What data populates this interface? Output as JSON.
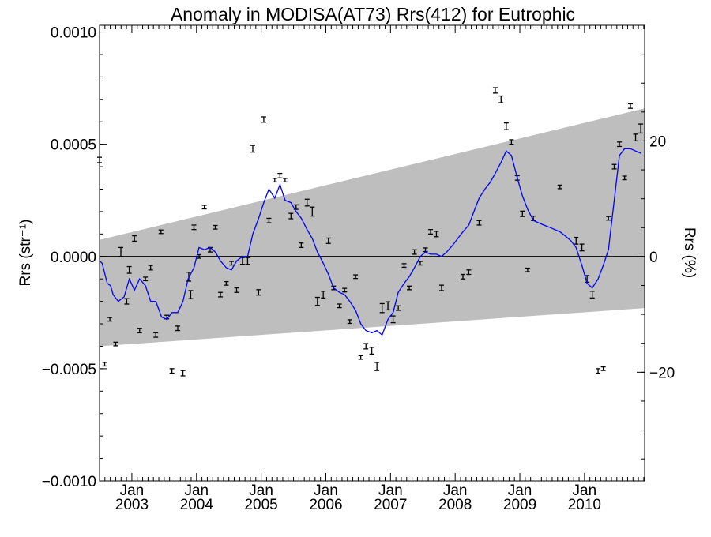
{
  "chart_data": {
    "type": "line",
    "title": "Anomaly in MODISA(AT73) Rrs(412) for Eutrophic",
    "ylabel_left": "Rrs (str⁻¹)",
    "ylabel_right": "Rrs (%)",
    "x_unit": "decimal year",
    "xlim": [
      2002.5,
      2010.93
    ],
    "ylim_left": [
      -0.001,
      0.00103
    ],
    "ylim_right": [
      -38.8,
      40.0
    ],
    "grid": false,
    "left_ticks": [
      {
        "value": 0.001,
        "label": "0.0010"
      },
      {
        "value": 0.0005,
        "label": "0.0005"
      },
      {
        "value": 0.0,
        "label": "0.0000"
      },
      {
        "value": -0.0005,
        "label": "−0.0005"
      },
      {
        "value": -0.001,
        "label": "−0.0010"
      }
    ],
    "right_ticks": [
      {
        "value": 20,
        "label": "20"
      },
      {
        "value": 0,
        "label": "0"
      },
      {
        "value": -20,
        "label": "−20"
      }
    ],
    "x_ticks": [
      {
        "value": 2003.0,
        "month": "Jan",
        "year": "2003"
      },
      {
        "value": 2004.0,
        "month": "Jan",
        "year": "2004"
      },
      {
        "value": 2005.0,
        "month": "Jan",
        "year": "2005"
      },
      {
        "value": 2006.0,
        "month": "Jan",
        "year": "2006"
      },
      {
        "value": 2007.0,
        "month": "Jan",
        "year": "2007"
      },
      {
        "value": 2008.0,
        "month": "Jan",
        "year": "2008"
      },
      {
        "value": 2009.0,
        "month": "Jan",
        "year": "2009"
      },
      {
        "value": 2010.0,
        "month": "Jan",
        "year": "2010"
      }
    ],
    "colors": {
      "band": "#bebebe",
      "smooth_line": "#0000ff",
      "points": "#000000",
      "zero_line": "#000000"
    },
    "band": {
      "upper_start": [
        2002.5,
        7.4e-05
      ],
      "upper_end": [
        2010.93,
        0.00066
      ],
      "lower_start": [
        2002.5,
        -0.0004
      ],
      "lower_end": [
        2010.93,
        -0.00023
      ]
    },
    "points": [
      {
        "x": 2002.5,
        "y": 0.00043,
        "e": 1.2e-05
      },
      {
        "x": 2002.58,
        "y": -0.00048,
        "e": 8e-06
      },
      {
        "x": 2002.66,
        "y": -0.00028,
        "e": 8e-06
      },
      {
        "x": 2002.75,
        "y": -0.00039,
        "e": 8e-06
      },
      {
        "x": 2002.83,
        "y": 2e-05,
        "e": 2e-05
      },
      {
        "x": 2002.92,
        "y": -0.0002,
        "e": 1.2e-05
      },
      {
        "x": 2002.96,
        "y": -6e-05,
        "e": 1.5e-05
      },
      {
        "x": 2003.04,
        "y": 8e-05,
        "e": 1.2e-05
      },
      {
        "x": 2003.12,
        "y": -0.00033,
        "e": 1e-05
      },
      {
        "x": 2003.21,
        "y": -0.0001,
        "e": 8e-06
      },
      {
        "x": 2003.29,
        "y": -5e-05,
        "e": 1e-05
      },
      {
        "x": 2003.37,
        "y": -0.00035,
        "e": 1e-05
      },
      {
        "x": 2003.45,
        "y": 0.00011,
        "e": 8e-06
      },
      {
        "x": 2003.54,
        "y": -0.00027,
        "e": 8e-06
      },
      {
        "x": 2003.62,
        "y": -0.00051,
        "e": 1e-05
      },
      {
        "x": 2003.71,
        "y": -0.00032,
        "e": 1e-05
      },
      {
        "x": 2003.79,
        "y": -0.00052,
        "e": 1.2e-05
      },
      {
        "x": 2003.88,
        "y": -9e-05,
        "e": 2e-05
      },
      {
        "x": 2003.91,
        "y": -0.00017,
        "e": 1.8e-05
      },
      {
        "x": 2003.96,
        "y": 0.00013,
        "e": 1e-05
      },
      {
        "x": 2004.04,
        "y": 0.0,
        "e": 8e-06
      },
      {
        "x": 2004.12,
        "y": 0.00022,
        "e": 8e-06
      },
      {
        "x": 2004.21,
        "y": 3e-05,
        "e": 1e-05
      },
      {
        "x": 2004.29,
        "y": 0.00013,
        "e": 8e-06
      },
      {
        "x": 2004.37,
        "y": -0.00017,
        "e": 1e-05
      },
      {
        "x": 2004.46,
        "y": -0.00012,
        "e": 8e-06
      },
      {
        "x": 2004.54,
        "y": -3e-05,
        "e": 8e-06
      },
      {
        "x": 2004.62,
        "y": -0.00015,
        "e": 1e-05
      },
      {
        "x": 2004.71,
        "y": -2e-05,
        "e": 1.5e-05
      },
      {
        "x": 2004.79,
        "y": -2e-05,
        "e": 1.5e-05
      },
      {
        "x": 2004.87,
        "y": 0.00048,
        "e": 1.5e-05
      },
      {
        "x": 2004.96,
        "y": -0.00016,
        "e": 1.2e-05
      },
      {
        "x": 2005.04,
        "y": 0.00061,
        "e": 1.2e-05
      },
      {
        "x": 2005.12,
        "y": 0.00016,
        "e": 1e-05
      },
      {
        "x": 2005.21,
        "y": 0.00034,
        "e": 8e-06
      },
      {
        "x": 2005.29,
        "y": 0.00036,
        "e": 1e-05
      },
      {
        "x": 2005.37,
        "y": 0.00034,
        "e": 8e-06
      },
      {
        "x": 2005.46,
        "y": 0.00018,
        "e": 1.2e-05
      },
      {
        "x": 2005.54,
        "y": 0.00022,
        "e": 1e-05
      },
      {
        "x": 2005.62,
        "y": 5e-05,
        "e": 1e-05
      },
      {
        "x": 2005.71,
        "y": 0.00024,
        "e": 1.5e-05
      },
      {
        "x": 2005.79,
        "y": 0.0002,
        "e": 2e-05
      },
      {
        "x": 2005.87,
        "y": -0.0002,
        "e": 1.8e-05
      },
      {
        "x": 2005.96,
        "y": -0.00017,
        "e": 1.5e-05
      },
      {
        "x": 2006.04,
        "y": 7e-05,
        "e": 1.2e-05
      },
      {
        "x": 2006.12,
        "y": -0.00014,
        "e": 8e-06
      },
      {
        "x": 2006.21,
        "y": -0.00022,
        "e": 8e-06
      },
      {
        "x": 2006.29,
        "y": -0.00015,
        "e": 8e-06
      },
      {
        "x": 2006.37,
        "y": -0.00029,
        "e": 8e-06
      },
      {
        "x": 2006.46,
        "y": -9e-05,
        "e": 8e-06
      },
      {
        "x": 2006.54,
        "y": -0.00045,
        "e": 8e-06
      },
      {
        "x": 2006.62,
        "y": -0.0004,
        "e": 1.2e-05
      },
      {
        "x": 2006.71,
        "y": -0.00042,
        "e": 1.5e-05
      },
      {
        "x": 2006.79,
        "y": -0.00049,
        "e": 1.8e-05
      },
      {
        "x": 2006.87,
        "y": -0.00023,
        "e": 2e-05
      },
      {
        "x": 2006.96,
        "y": -0.00022,
        "e": 1.8e-05
      },
      {
        "x": 2007.04,
        "y": -0.00028,
        "e": 1.5e-05
      },
      {
        "x": 2007.12,
        "y": -0.00023,
        "e": 1e-05
      },
      {
        "x": 2007.21,
        "y": -4e-05,
        "e": 8e-06
      },
      {
        "x": 2007.29,
        "y": -0.00014,
        "e": 8e-06
      },
      {
        "x": 2007.37,
        "y": 2e-05,
        "e": 1e-05
      },
      {
        "x": 2007.46,
        "y": -3e-05,
        "e": 8e-06
      },
      {
        "x": 2007.54,
        "y": 3e-05,
        "e": 8e-06
      },
      {
        "x": 2007.62,
        "y": 0.00011,
        "e": 1e-05
      },
      {
        "x": 2007.71,
        "y": 0.0001,
        "e": 1.2e-05
      },
      {
        "x": 2007.79,
        "y": -0.00014,
        "e": 1.2e-05
      },
      {
        "x": 2008.12,
        "y": -9e-05,
        "e": 1e-05
      },
      {
        "x": 2008.21,
        "y": -7e-05,
        "e": 1e-05
      },
      {
        "x": 2008.37,
        "y": 0.00015,
        "e": 1e-05
      },
      {
        "x": 2008.62,
        "y": 0.00074,
        "e": 1.2e-05
      },
      {
        "x": 2008.71,
        "y": 0.0007,
        "e": 1.5e-05
      },
      {
        "x": 2008.79,
        "y": 0.00058,
        "e": 1.5e-05
      },
      {
        "x": 2008.87,
        "y": 0.00051,
        "e": 1e-05
      },
      {
        "x": 2008.96,
        "y": 0.00035,
        "e": 1e-05
      },
      {
        "x": 2009.04,
        "y": 0.00019,
        "e": 1.2e-05
      },
      {
        "x": 2009.12,
        "y": -6e-05,
        "e": 8e-06
      },
      {
        "x": 2009.21,
        "y": 0.00017,
        "e": 1e-05
      },
      {
        "x": 2009.62,
        "y": 0.00031,
        "e": 8e-06
      },
      {
        "x": 2009.87,
        "y": 7e-05,
        "e": 1.5e-05
      },
      {
        "x": 2009.96,
        "y": 4e-05,
        "e": 1.5e-05
      },
      {
        "x": 2010.04,
        "y": -0.0001,
        "e": 1.5e-05
      },
      {
        "x": 2010.12,
        "y": -0.00017,
        "e": 1.5e-05
      },
      {
        "x": 2010.21,
        "y": -0.00051,
        "e": 1e-05
      },
      {
        "x": 2010.29,
        "y": -0.0005,
        "e": 8e-06
      },
      {
        "x": 2010.37,
        "y": 0.00017,
        "e": 8e-06
      },
      {
        "x": 2010.46,
        "y": 0.0004,
        "e": 1e-05
      },
      {
        "x": 2010.54,
        "y": 0.0005,
        "e": 1e-05
      },
      {
        "x": 2010.62,
        "y": 0.00035,
        "e": 8e-06
      },
      {
        "x": 2010.71,
        "y": 0.00067,
        "e": 1e-05
      },
      {
        "x": 2010.79,
        "y": 0.00053,
        "e": 1.5e-05
      },
      {
        "x": 2010.87,
        "y": 0.00057,
        "e": 2e-05
      }
    ],
    "smooth_line": [
      [
        2002.5,
        -2e-05
      ],
      [
        2002.54,
        -3e-05
      ],
      [
        2002.62,
        -0.00012
      ],
      [
        2002.67,
        -0.00013
      ],
      [
        2002.71,
        -0.00017
      ],
      [
        2002.79,
        -0.0002
      ],
      [
        2002.88,
        -0.00018
      ],
      [
        2002.96,
        -0.0001
      ],
      [
        2003.04,
        -0.00015
      ],
      [
        2003.12,
        -0.0001
      ],
      [
        2003.21,
        -0.00013
      ],
      [
        2003.29,
        -0.0002
      ],
      [
        2003.37,
        -0.0002
      ],
      [
        2003.46,
        -0.00027
      ],
      [
        2003.54,
        -0.00028
      ],
      [
        2003.62,
        -0.00025
      ],
      [
        2003.71,
        -0.00025
      ],
      [
        2003.79,
        -0.0002
      ],
      [
        2003.87,
        -0.0001
      ],
      [
        2003.96,
        -5e-05
      ],
      [
        2004.04,
        4e-05
      ],
      [
        2004.12,
        3e-05
      ],
      [
        2004.21,
        4e-05
      ],
      [
        2004.29,
        2e-05
      ],
      [
        2004.37,
        -2e-05
      ],
      [
        2004.46,
        -5e-05
      ],
      [
        2004.54,
        -6e-05
      ],
      [
        2004.62,
        -2e-05
      ],
      [
        2004.71,
        0.0
      ],
      [
        2004.79,
        0.0
      ],
      [
        2004.87,
        0.0001
      ],
      [
        2004.96,
        0.00017
      ],
      [
        2005.04,
        0.00024
      ],
      [
        2005.12,
        0.0003
      ],
      [
        2005.21,
        0.00026
      ],
      [
        2005.29,
        0.00032
      ],
      [
        2005.37,
        0.00025
      ],
      [
        2005.46,
        0.00024
      ],
      [
        2005.54,
        0.0002
      ],
      [
        2005.62,
        0.00017
      ],
      [
        2005.71,
        0.00012
      ],
      [
        2005.79,
        8e-05
      ],
      [
        2005.87,
        2e-05
      ],
      [
        2005.96,
        -3e-05
      ],
      [
        2006.04,
        -8e-05
      ],
      [
        2006.12,
        -0.00014
      ],
      [
        2006.21,
        -0.00016
      ],
      [
        2006.29,
        -0.00017
      ],
      [
        2006.37,
        -0.0002
      ],
      [
        2006.46,
        -0.00024
      ],
      [
        2006.54,
        -0.0003
      ],
      [
        2006.62,
        -0.00033
      ],
      [
        2006.71,
        -0.00034
      ],
      [
        2006.79,
        -0.00033
      ],
      [
        2006.87,
        -0.00035
      ],
      [
        2006.96,
        -0.00028
      ],
      [
        2007.04,
        -0.00025
      ],
      [
        2007.12,
        -0.00016
      ],
      [
        2007.21,
        -0.00012
      ],
      [
        2007.29,
        -9e-05
      ],
      [
        2007.37,
        -5e-05
      ],
      [
        2007.46,
        0.0
      ],
      [
        2007.54,
        2e-05
      ],
      [
        2007.62,
        1e-05
      ],
      [
        2007.71,
        1e-05
      ],
      [
        2007.79,
        0.0
      ],
      [
        2007.87,
        2e-05
      ],
      [
        2007.96,
        5e-05
      ],
      [
        2008.04,
        8e-05
      ],
      [
        2008.12,
        0.00011
      ],
      [
        2008.21,
        0.00014
      ],
      [
        2008.29,
        0.0002
      ],
      [
        2008.37,
        0.00026
      ],
      [
        2008.46,
        0.0003
      ],
      [
        2008.54,
        0.00033
      ],
      [
        2008.62,
        0.00037
      ],
      [
        2008.71,
        0.00042
      ],
      [
        2008.79,
        0.00047
      ],
      [
        2008.87,
        0.00045
      ],
      [
        2008.96,
        0.00035
      ],
      [
        2009.04,
        0.00027
      ],
      [
        2009.12,
        0.00021
      ],
      [
        2009.21,
        0.00016
      ],
      [
        2009.29,
        0.00015
      ],
      [
        2009.37,
        0.00014
      ],
      [
        2009.46,
        0.00013
      ],
      [
        2009.54,
        0.00012
      ],
      [
        2009.62,
        0.00011
      ],
      [
        2009.71,
        9e-05
      ],
      [
        2009.79,
        7e-05
      ],
      [
        2009.87,
        4e-05
      ],
      [
        2009.96,
        -4e-05
      ],
      [
        2010.04,
        -0.00012
      ],
      [
        2010.12,
        -0.00014
      ],
      [
        2010.21,
        -0.0001
      ],
      [
        2010.29,
        -4e-05
      ],
      [
        2010.37,
        3e-05
      ],
      [
        2010.46,
        0.00025
      ],
      [
        2010.54,
        0.00045
      ],
      [
        2010.62,
        0.00048
      ],
      [
        2010.71,
        0.00048
      ],
      [
        2010.79,
        0.00047
      ],
      [
        2010.87,
        0.00046
      ]
    ]
  }
}
